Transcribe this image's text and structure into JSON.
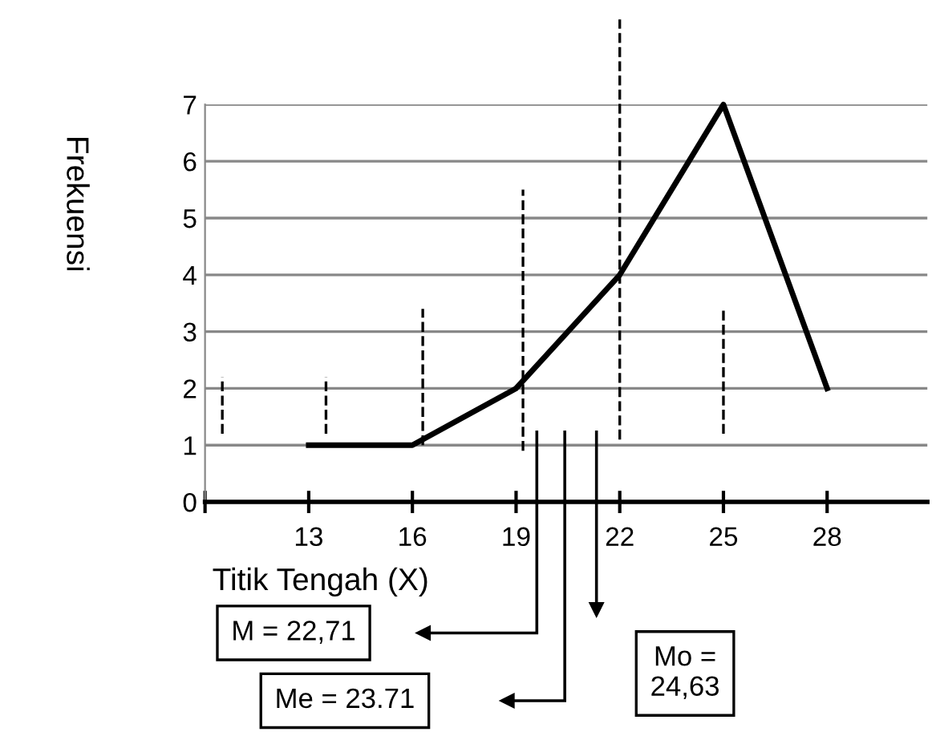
{
  "chart_data": {
    "type": "line",
    "xlabel": "Titik Tengah (X)",
    "ylabel": "Frekuensi",
    "x": [
      13,
      16,
      19,
      22,
      25,
      28
    ],
    "series": [
      {
        "color": "#000000",
        "values": [
          1,
          1,
          2,
          4,
          7,
          2
        ]
      }
    ],
    "xlim": [
      10,
      30.9
    ],
    "xticks": [
      {
        "value": 10,
        "label": null
      },
      13,
      16,
      19,
      22,
      25,
      28
    ],
    "ylim": [
      0,
      7
    ],
    "yticks": [
      0,
      1,
      2,
      3,
      4,
      5,
      6,
      7
    ],
    "grid": "y",
    "marker": "none",
    "line_style": "solid",
    "ref_lines": [
      {
        "axis": "x",
        "value": 10.5,
        "line_style": "dashed",
        "color": "#000000"
      },
      {
        "axis": "x",
        "value": 13.5,
        "line_style": "dashed",
        "color": "#000000"
      },
      {
        "axis": "x",
        "value": 16.3,
        "line_style": "dashed",
        "color": "#000000"
      },
      {
        "axis": "x",
        "value": 19.2,
        "line_style": "dashed",
        "color": "#000000"
      },
      {
        "axis": "x",
        "value": 22,
        "line_style": "dashed",
        "color": "#000000"
      },
      {
        "axis": "x",
        "value": 25,
        "line_style": "dashed",
        "color": "#000000"
      }
    ],
    "annotations": [
      "M = 22,71",
      "Me = 23.71",
      "Mo =\n24,63"
    ]
  }
}
